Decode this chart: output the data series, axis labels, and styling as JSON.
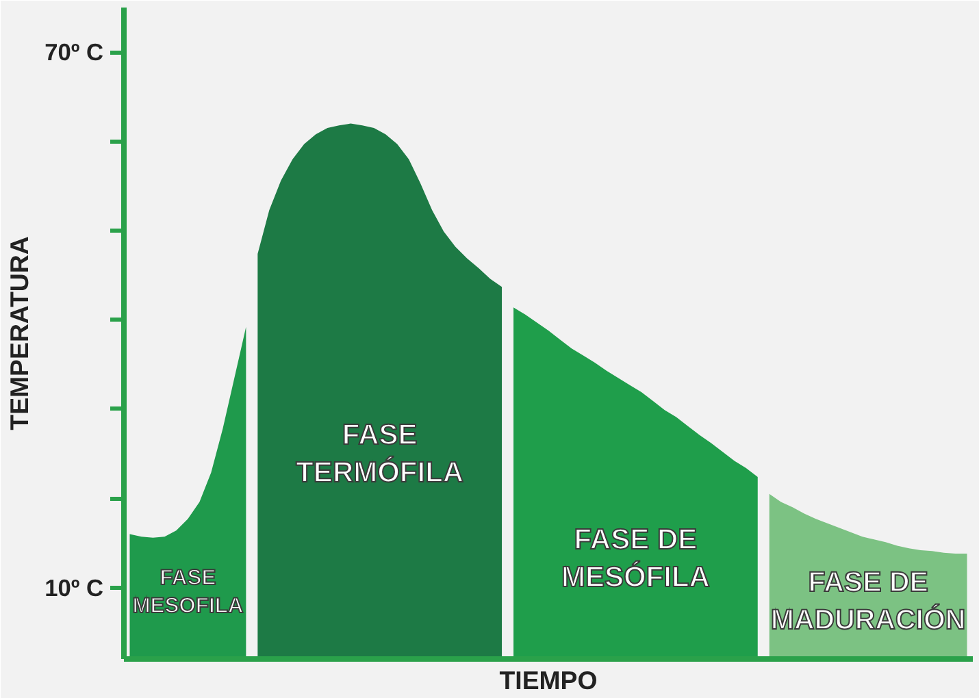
{
  "chart_data": {
    "type": "area",
    "xlabel": "TIEMPO",
    "ylabel": "TEMPERATURA",
    "categories": [
      null,
      null,
      null,
      null,
      null,
      null,
      null,
      null,
      null,
      null,
      null,
      null,
      null,
      null,
      null,
      null,
      null,
      null,
      null,
      null,
      null,
      null,
      null,
      null,
      null,
      null,
      null,
      null,
      null,
      null,
      null,
      null,
      null,
      null,
      null,
      null,
      null,
      null,
      null,
      null,
      null,
      null,
      null,
      null,
      null,
      null,
      null,
      null,
      null,
      null,
      null,
      null,
      null,
      null,
      null,
      null,
      null,
      null,
      null,
      null,
      null,
      null,
      null,
      null,
      null,
      null,
      null,
      null,
      null,
      null,
      null,
      null,
      null
    ],
    "series": [
      {
        "name": "FASE\nMESOFILA",
        "color": "#1f9a4c",
        "values": [
          16.0,
          15.7,
          15.6,
          15.7,
          16.4,
          17.7,
          19.6,
          22.9,
          27.8,
          33.5,
          39.2,
          null,
          null,
          null,
          null,
          null,
          null,
          null,
          null,
          null,
          null,
          null,
          null,
          null,
          null,
          null,
          null,
          null,
          null,
          null,
          null,
          null,
          null,
          null,
          null,
          null,
          null,
          null,
          null,
          null,
          null,
          null,
          null,
          null,
          null,
          null,
          null,
          null,
          null,
          null,
          null,
          null,
          null,
          null,
          null,
          null,
          null,
          null,
          null,
          null,
          null,
          null,
          null,
          null,
          null,
          null,
          null,
          null,
          null,
          null,
          null,
          null,
          null
        ]
      },
      {
        "name": "FASE\nTERMÓFILA",
        "color": "#1d7a45",
        "values": [
          null,
          null,
          null,
          null,
          null,
          null,
          null,
          null,
          null,
          null,
          null,
          47.4,
          52.3,
          55.6,
          58.0,
          59.7,
          60.8,
          61.5,
          61.8,
          62.0,
          61.8,
          61.5,
          60.8,
          59.7,
          58.0,
          55.3,
          52.3,
          49.9,
          48.2,
          46.9,
          45.8,
          44.6,
          43.7,
          null,
          null,
          null,
          null,
          null,
          null,
          null,
          null,
          null,
          null,
          null,
          null,
          null,
          null,
          null,
          null,
          null,
          null,
          null,
          null,
          null,
          null,
          null,
          null,
          null,
          null,
          null,
          null,
          null,
          null,
          null,
          null,
          null,
          null,
          null,
          null,
          null,
          null,
          null,
          null
        ]
      },
      {
        "name": "FASE DE\nMESÓFILA",
        "color": "#1f9e4b",
        "values": [
          null,
          null,
          null,
          null,
          null,
          null,
          null,
          null,
          null,
          null,
          null,
          null,
          null,
          null,
          null,
          null,
          null,
          null,
          null,
          null,
          null,
          null,
          null,
          null,
          null,
          null,
          null,
          null,
          null,
          null,
          null,
          null,
          null,
          41.4,
          40.6,
          39.7,
          38.8,
          37.8,
          36.8,
          36.0,
          35.2,
          34.3,
          33.5,
          32.7,
          31.9,
          30.9,
          29.9,
          29.1,
          28.1,
          27.1,
          26.2,
          25.2,
          24.2,
          23.4,
          22.4,
          null,
          null,
          null,
          null,
          null,
          null,
          null,
          null,
          null,
          null,
          null,
          null,
          null,
          null,
          null,
          null,
          null,
          null
        ]
      },
      {
        "name": "FASE DE\nMADURACIÓN",
        "color": "#7cc283",
        "values": [
          null,
          null,
          null,
          null,
          null,
          null,
          null,
          null,
          null,
          null,
          null,
          null,
          null,
          null,
          null,
          null,
          null,
          null,
          null,
          null,
          null,
          null,
          null,
          null,
          null,
          null,
          null,
          null,
          null,
          null,
          null,
          null,
          null,
          null,
          null,
          null,
          null,
          null,
          null,
          null,
          null,
          null,
          null,
          null,
          null,
          null,
          null,
          null,
          null,
          null,
          null,
          null,
          null,
          null,
          null,
          20.5,
          19.6,
          19.0,
          18.3,
          17.7,
          17.2,
          16.7,
          16.2,
          15.7,
          15.4,
          15.1,
          14.7,
          14.4,
          14.2,
          14.1,
          13.9,
          13.8,
          13.8
        ]
      }
    ],
    "ylim": [
      2,
      75
    ],
    "yticks": [
      {
        "value": 10,
        "label": "10º C"
      },
      {
        "value": 20,
        "label": null
      },
      {
        "value": 30,
        "label": null
      },
      {
        "value": 40,
        "label": null
      },
      {
        "value": 50,
        "label": null
      },
      {
        "value": 60,
        "label": null
      },
      {
        "value": 70,
        "label": "70º C"
      }
    ],
    "tick_labels": "y",
    "grid": false
  }
}
